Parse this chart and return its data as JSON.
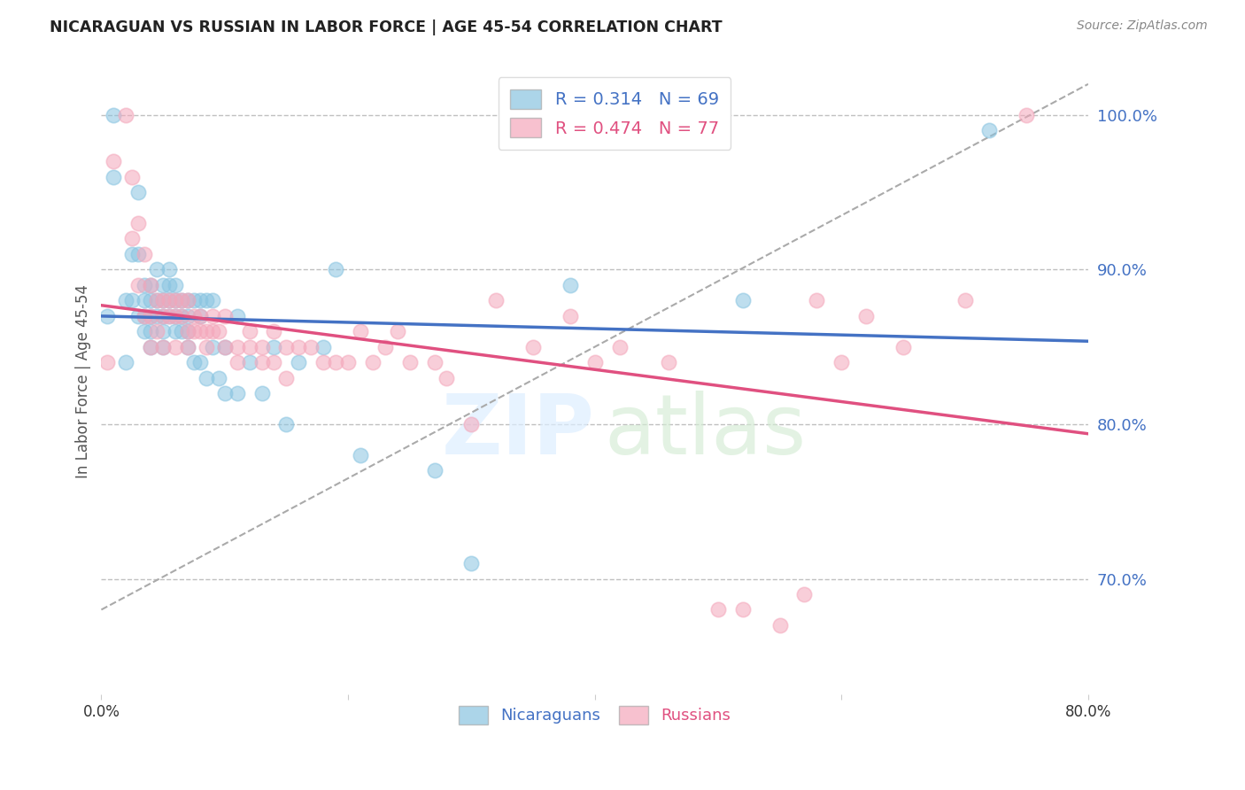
{
  "title": "NICARAGUAN VS RUSSIAN IN LABOR FORCE | AGE 45-54 CORRELATION CHART",
  "source": "Source: ZipAtlas.com",
  "ylabel": "In Labor Force | Age 45-54",
  "xmin": 0.0,
  "xmax": 0.8,
  "ymin": 0.625,
  "ymax": 1.03,
  "yticks": [
    0.7,
    0.8,
    0.9,
    1.0
  ],
  "ytick_labels": [
    "70.0%",
    "80.0%",
    "90.0%",
    "100.0%"
  ],
  "xticks": [
    0.0,
    0.2,
    0.4,
    0.6,
    0.8
  ],
  "xtick_labels": [
    "0.0%",
    "",
    "",
    "",
    "80.0%"
  ],
  "blue_R": 0.314,
  "blue_N": 69,
  "pink_R": 0.474,
  "pink_N": 77,
  "blue_color": "#89c4e1",
  "pink_color": "#f4a7bb",
  "blue_line_color": "#4472c4",
  "pink_line_color": "#e05080",
  "ref_line_color": "#aaaaaa",
  "legend_blue_label": "Nicaraguans",
  "legend_pink_label": "Russians",
  "blue_scatter_x": [
    0.005,
    0.01,
    0.01,
    0.02,
    0.02,
    0.025,
    0.025,
    0.03,
    0.03,
    0.03,
    0.035,
    0.035,
    0.035,
    0.035,
    0.04,
    0.04,
    0.04,
    0.04,
    0.04,
    0.045,
    0.045,
    0.045,
    0.05,
    0.05,
    0.05,
    0.05,
    0.05,
    0.055,
    0.055,
    0.055,
    0.055,
    0.06,
    0.06,
    0.06,
    0.06,
    0.065,
    0.065,
    0.065,
    0.07,
    0.07,
    0.07,
    0.07,
    0.075,
    0.075,
    0.08,
    0.08,
    0.08,
    0.085,
    0.085,
    0.09,
    0.09,
    0.095,
    0.1,
    0.1,
    0.11,
    0.11,
    0.12,
    0.13,
    0.14,
    0.15,
    0.16,
    0.18,
    0.19,
    0.21,
    0.27,
    0.3,
    0.38,
    0.52,
    0.72
  ],
  "blue_scatter_y": [
    0.87,
    0.96,
    1.0,
    0.88,
    0.84,
    0.91,
    0.88,
    0.95,
    0.91,
    0.87,
    0.89,
    0.88,
    0.87,
    0.86,
    0.89,
    0.88,
    0.87,
    0.86,
    0.85,
    0.9,
    0.88,
    0.87,
    0.89,
    0.88,
    0.87,
    0.86,
    0.85,
    0.9,
    0.89,
    0.88,
    0.87,
    0.89,
    0.88,
    0.87,
    0.86,
    0.88,
    0.87,
    0.86,
    0.88,
    0.87,
    0.86,
    0.85,
    0.88,
    0.84,
    0.88,
    0.87,
    0.84,
    0.88,
    0.83,
    0.88,
    0.85,
    0.83,
    0.85,
    0.82,
    0.87,
    0.82,
    0.84,
    0.82,
    0.85,
    0.8,
    0.84,
    0.85,
    0.9,
    0.78,
    0.77,
    0.71,
    0.89,
    0.88,
    0.99
  ],
  "pink_scatter_x": [
    0.005,
    0.01,
    0.02,
    0.025,
    0.025,
    0.03,
    0.03,
    0.035,
    0.035,
    0.04,
    0.04,
    0.04,
    0.045,
    0.045,
    0.05,
    0.05,
    0.05,
    0.055,
    0.055,
    0.06,
    0.06,
    0.06,
    0.065,
    0.065,
    0.07,
    0.07,
    0.07,
    0.075,
    0.075,
    0.08,
    0.08,
    0.085,
    0.085,
    0.09,
    0.09,
    0.095,
    0.1,
    0.1,
    0.11,
    0.11,
    0.12,
    0.12,
    0.13,
    0.13,
    0.14,
    0.14,
    0.15,
    0.15,
    0.16,
    0.17,
    0.18,
    0.19,
    0.2,
    0.21,
    0.22,
    0.23,
    0.24,
    0.25,
    0.27,
    0.28,
    0.3,
    0.32,
    0.35,
    0.38,
    0.4,
    0.42,
    0.46,
    0.5,
    0.52,
    0.55,
    0.57,
    0.58,
    0.6,
    0.62,
    0.65,
    0.7,
    0.75
  ],
  "pink_scatter_y": [
    0.84,
    0.97,
    1.0,
    0.96,
    0.92,
    0.93,
    0.89,
    0.91,
    0.87,
    0.89,
    0.87,
    0.85,
    0.88,
    0.86,
    0.88,
    0.87,
    0.85,
    0.88,
    0.87,
    0.88,
    0.87,
    0.85,
    0.88,
    0.87,
    0.88,
    0.86,
    0.85,
    0.87,
    0.86,
    0.87,
    0.86,
    0.86,
    0.85,
    0.87,
    0.86,
    0.86,
    0.87,
    0.85,
    0.85,
    0.84,
    0.86,
    0.85,
    0.85,
    0.84,
    0.86,
    0.84,
    0.85,
    0.83,
    0.85,
    0.85,
    0.84,
    0.84,
    0.84,
    0.86,
    0.84,
    0.85,
    0.86,
    0.84,
    0.84,
    0.83,
    0.8,
    0.88,
    0.85,
    0.87,
    0.84,
    0.85,
    0.84,
    0.68,
    0.68,
    0.67,
    0.69,
    0.88,
    0.84,
    0.87,
    0.85,
    0.88,
    1.0
  ]
}
